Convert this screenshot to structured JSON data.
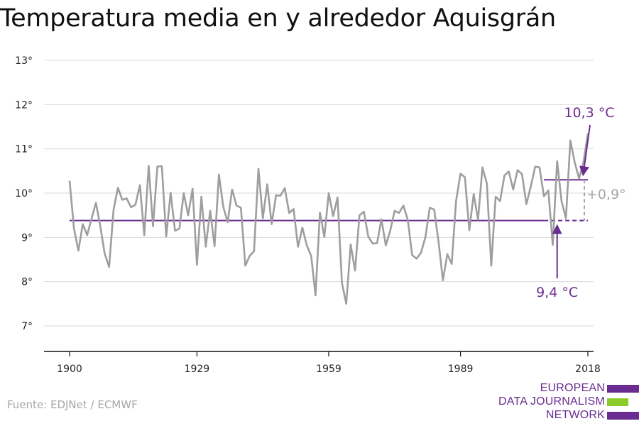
{
  "title": "Temperatura media en y alrededor Aquisgrán",
  "source": "Fuente: EDJNet / ECMWF",
  "logo": {
    "lines": [
      "EUROPEAN",
      "DATA JOURNALISM",
      "NETWORK"
    ],
    "colors": [
      "#6a2c91",
      "#8ccc2a",
      "#6a2c91"
    ]
  },
  "colors": {
    "series": "#9e9e9e",
    "average": "#6a2c91",
    "delta": "#a6a6a6",
    "grid": "#d9d9d9",
    "axis": "#111111"
  },
  "chart_data": {
    "type": "line",
    "title": "Temperatura media en y alrededor Aquisgrán",
    "ylim": [
      7,
      13
    ],
    "xlim": [
      1900,
      2018
    ],
    "y_ticks": [
      "7°",
      "8°",
      "9°",
      "10°",
      "11°",
      "12°",
      "13°"
    ],
    "x_ticks": [
      "1900",
      "1929",
      "1959",
      "1989",
      "2018"
    ],
    "grid": true,
    "x": [
      1900,
      1901,
      1902,
      1903,
      1904,
      1905,
      1906,
      1907,
      1908,
      1909,
      1910,
      1911,
      1912,
      1913,
      1914,
      1915,
      1916,
      1917,
      1918,
      1919,
      1920,
      1921,
      1922,
      1923,
      1924,
      1925,
      1926,
      1927,
      1928,
      1929,
      1930,
      1931,
      1932,
      1933,
      1934,
      1935,
      1936,
      1937,
      1938,
      1939,
      1940,
      1941,
      1942,
      1943,
      1944,
      1945,
      1946,
      1947,
      1948,
      1949,
      1950,
      1951,
      1952,
      1953,
      1954,
      1955,
      1956,
      1957,
      1958,
      1959,
      1960,
      1961,
      1962,
      1963,
      1964,
      1965,
      1966,
      1967,
      1968,
      1969,
      1970,
      1971,
      1972,
      1973,
      1974,
      1975,
      1976,
      1977,
      1978,
      1979,
      1980,
      1981,
      1982,
      1983,
      1984,
      1985,
      1986,
      1987,
      1988,
      1989,
      1990,
      1991,
      1992,
      1993,
      1994,
      1995,
      1996,
      1997,
      1998,
      1999,
      2000,
      2001,
      2002,
      2003,
      2004,
      2005,
      2006,
      2007,
      2008,
      2009,
      2010,
      2011,
      2012,
      2013,
      2014,
      2015,
      2016,
      2017,
      2018
    ],
    "values": [
      10.28,
      9.2,
      8.7,
      9.3,
      9.05,
      9.42,
      9.78,
      9.25,
      8.63,
      8.33,
      9.62,
      10.12,
      9.85,
      9.88,
      9.68,
      9.74,
      10.18,
      9.05,
      10.62,
      9.25,
      10.6,
      10.61,
      9.02,
      10.01,
      9.15,
      9.2,
      10.0,
      9.5,
      10.1,
      8.38,
      9.92,
      8.79,
      9.6,
      8.8,
      10.42,
      9.69,
      9.34,
      10.08,
      9.72,
      9.67,
      8.36,
      8.58,
      8.69,
      10.55,
      9.43,
      10.2,
      9.3,
      9.95,
      9.94,
      10.11,
      9.55,
      9.64,
      8.79,
      9.22,
      8.82,
      8.58,
      7.69,
      9.56,
      9.01,
      10.0,
      9.48,
      9.9,
      7.97,
      7.5,
      8.84,
      8.25,
      9.5,
      9.58,
      9.02,
      8.86,
      8.87,
      9.41,
      8.82,
      9.15,
      9.6,
      9.55,
      9.72,
      9.39,
      8.6,
      8.52,
      8.65,
      9.0,
      9.67,
      9.63,
      8.9,
      8.03,
      8.62,
      8.4,
      9.83,
      10.44,
      10.36,
      9.16,
      9.98,
      9.4,
      10.58,
      10.22,
      8.36,
      9.92,
      9.82,
      10.4,
      10.49,
      10.08,
      10.52,
      10.43,
      9.75,
      10.15,
      10.6,
      10.58,
      9.93,
      10.06,
      8.83,
      10.72,
      9.82,
      9.43,
      11.19,
      10.7,
      10.33,
      10.7,
      11.35
    ],
    "annotations": {
      "avg_early": {
        "label": "9,4 °C",
        "value": 9.38
      },
      "avg_recent": {
        "label": "10,3 °C",
        "value": 10.3
      },
      "delta": {
        "label": "+0,9°",
        "value": 0.9
      }
    }
  }
}
